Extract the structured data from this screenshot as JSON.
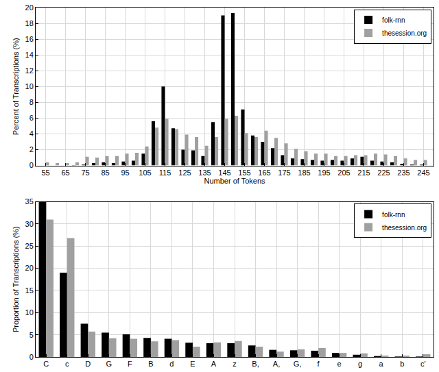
{
  "chart_data": [
    {
      "type": "bar",
      "x_label": "Number of Tokens",
      "y_label": "Percent of Transcriptions (%)",
      "x": [
        55,
        60,
        65,
        70,
        75,
        80,
        85,
        90,
        95,
        100,
        105,
        110,
        115,
        120,
        125,
        130,
        135,
        140,
        145,
        150,
        155,
        160,
        165,
        170,
        175,
        180,
        185,
        190,
        195,
        200,
        205,
        210,
        215,
        220,
        225,
        230,
        235,
        240,
        245
      ],
      "series": [
        {
          "name": "folk-rnn",
          "color": "#000000",
          "values": [
            0,
            0,
            0,
            0.05,
            0.1,
            0.3,
            0.4,
            0.3,
            0.5,
            0.6,
            1.5,
            5.6,
            10,
            4.7,
            2,
            1.9,
            1.2,
            5.5,
            19,
            19.3,
            7.1,
            3.8,
            3,
            2.2,
            1.3,
            0.9,
            0.8,
            0.7,
            0.6,
            0.7,
            0.6,
            0.9,
            1.1,
            0.6,
            0.5,
            0.4,
            0.2,
            0.1,
            0.1
          ]
        },
        {
          "name": "thesession.org",
          "color": "#a0a0a0",
          "values": [
            0.4,
            0.3,
            0.3,
            0.4,
            1.1,
            1,
            1.2,
            1.2,
            1.5,
            1.6,
            2.4,
            4.8,
            5.9,
            4.6,
            3.9,
            3.6,
            2.5,
            3.6,
            5.9,
            6.3,
            4.1,
            3.6,
            4.4,
            3.5,
            2.8,
            2.1,
            1.8,
            1.5,
            1.5,
            1.2,
            1.2,
            1.3,
            1.3,
            1.5,
            1.4,
            1.2,
            0.9,
            0.7,
            0.7
          ]
        }
      ],
      "xlim": [
        50,
        250
      ],
      "xticks": [
        55,
        65,
        75,
        85,
        95,
        105,
        115,
        125,
        135,
        145,
        155,
        165,
        175,
        185,
        195,
        205,
        215,
        225,
        235,
        245
      ],
      "ylim": [
        0,
        20
      ],
      "yticks": [
        0,
        2,
        4,
        6,
        8,
        10,
        12,
        14,
        16,
        18,
        20
      ],
      "grid": true,
      "legend": "upper right"
    },
    {
      "type": "bar",
      "y_label": "Proportion of Transcriptions (%)",
      "categories": [
        "C",
        "c",
        "D",
        "G",
        "F",
        "B",
        "d",
        "E",
        "A",
        "z",
        "B,",
        "A,",
        "G,",
        "f",
        "e",
        "g",
        "a",
        "b",
        "c'"
      ],
      "series": [
        {
          "name": "folk-rnn",
          "color": "#000000",
          "values": [
            35,
            19,
            7.5,
            5.5,
            5.1,
            4.3,
            4.1,
            3.2,
            3.1,
            3.1,
            2.6,
            1.6,
            1.5,
            1.4,
            0.9,
            0.5,
            0.2,
            0.1,
            0.1
          ]
        },
        {
          "name": "thesession.org",
          "color": "#a0a0a0",
          "values": [
            31,
            26.8,
            5.7,
            4.2,
            4.1,
            3.5,
            3.8,
            2.3,
            3.3,
            3.6,
            2.3,
            1.2,
            1.7,
            2.0,
            0.9,
            0.8,
            0.3,
            0.3,
            0.6
          ]
        }
      ],
      "ylim": [
        0,
        35
      ],
      "yticks": [
        0,
        5,
        10,
        15,
        20,
        25,
        30,
        35
      ],
      "grid": true,
      "legend": "upper right"
    }
  ]
}
